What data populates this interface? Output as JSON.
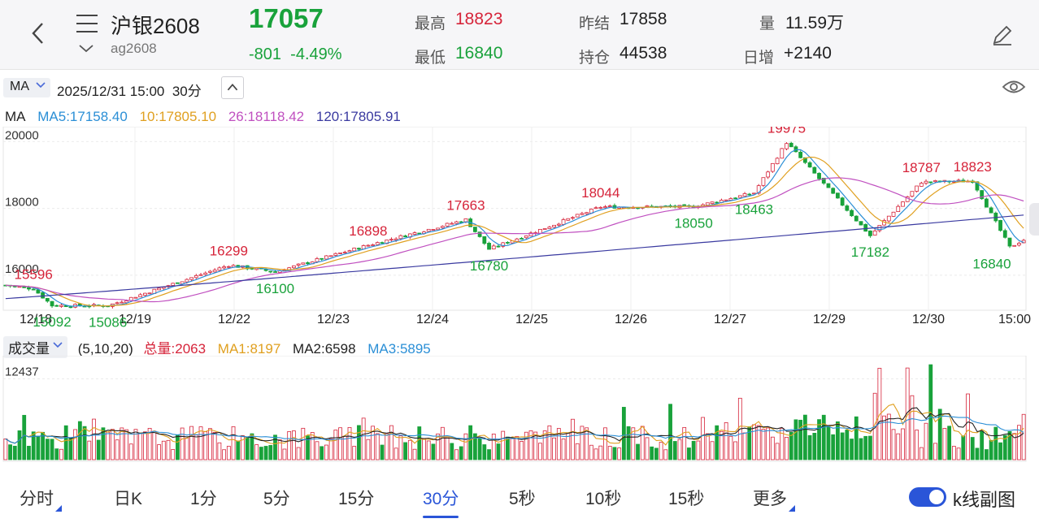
{
  "header": {
    "name": "沪银2608",
    "code": "ag2608",
    "price": "17057",
    "change": "-801",
    "change_pct": "-4.49%",
    "high_label": "最高",
    "high": "18823",
    "low_label": "最低",
    "low": "16840",
    "prev_settle_label": "昨结",
    "prev_settle": "17858",
    "open_interest_label": "持仓",
    "open_interest": "44538",
    "volume_label": "量",
    "volume": "11.59万",
    "daily_add_label": "日增",
    "daily_add": "+2140"
  },
  "toolbar": {
    "indicator": "MA",
    "time": "2025/12/31 15:00",
    "period": "30分"
  },
  "ma_legend": {
    "title": "MA",
    "ma5": "MA5:17158.40",
    "ma10": "10:17805.10",
    "ma26": "26:18118.42",
    "ma120": "120:17805.91"
  },
  "volume_legend": {
    "indicator": "成交量",
    "params": "(5,10,20)",
    "total": "总量:2063",
    "ma1": "MA1:8197",
    "ma2": "MA2:6598",
    "ma3": "MA3:5895",
    "axis_label": "12437"
  },
  "colors": {
    "up": "#d6243a",
    "down": "#19a23b",
    "ma5": "#2b8fd6",
    "ma10": "#e0a020",
    "ma26": "#c050c0",
    "ma120": "#3a3aa0",
    "accent": "#2a55d8"
  },
  "tabs": [
    {
      "label": "分时",
      "corner": true
    },
    {
      "label": "日K"
    },
    {
      "label": "1分"
    },
    {
      "label": "5分"
    },
    {
      "label": "15分"
    },
    {
      "label": "30分",
      "active": true
    },
    {
      "label": "5秒"
    },
    {
      "label": "10秒"
    },
    {
      "label": "15秒"
    },
    {
      "label": "更多",
      "corner": true
    }
  ],
  "sub_chart_toggle_label": "k线副图",
  "chart_data": {
    "type": "candlestick",
    "y_ticks": [
      "20000",
      "18000",
      "16000"
    ],
    "ylim": [
      15000,
      20300
    ],
    "x_labels": [
      "12/18",
      "12/19",
      "12/22",
      "12/23",
      "12/24",
      "12/25",
      "12/26",
      "12/27",
      "12/29",
      "12/30",
      "15:00"
    ],
    "annotations": [
      {
        "label": "15596",
        "x": 6,
        "y": 15596,
        "color": "up"
      },
      {
        "label": "15092",
        "x": 10,
        "y": 15092,
        "color": "down"
      },
      {
        "label": "15086",
        "x": 22,
        "y": 15086,
        "color": "down"
      },
      {
        "label": "16299",
        "x": 48,
        "y": 16299,
        "color": "up"
      },
      {
        "label": "16100",
        "x": 58,
        "y": 16100,
        "color": "down"
      },
      {
        "label": "16898",
        "x": 78,
        "y": 16898,
        "color": "up"
      },
      {
        "label": "17663",
        "x": 99,
        "y": 17663,
        "color": "up"
      },
      {
        "label": "16780",
        "x": 104,
        "y": 16780,
        "color": "down"
      },
      {
        "label": "18044",
        "x": 128,
        "y": 18044,
        "color": "up"
      },
      {
        "label": "18050",
        "x": 148,
        "y": 18050,
        "color": "down"
      },
      {
        "label": "18463",
        "x": 161,
        "y": 18463,
        "color": "down"
      },
      {
        "label": "19975",
        "x": 168,
        "y": 19975,
        "color": "up"
      },
      {
        "label": "17182",
        "x": 186,
        "y": 17182,
        "color": "down"
      },
      {
        "label": "18787",
        "x": 197,
        "y": 18787,
        "color": "up"
      },
      {
        "label": "18823",
        "x": 208,
        "y": 18823,
        "color": "up"
      },
      {
        "label": "16840",
        "x": 216,
        "y": 16840,
        "color": "down"
      }
    ],
    "series": [
      {
        "name": "MA5"
      },
      {
        "name": "10"
      },
      {
        "name": "26"
      },
      {
        "name": "120"
      }
    ],
    "volume_ylim": [
      0,
      16000
    ],
    "volume_tick": 12437
  }
}
